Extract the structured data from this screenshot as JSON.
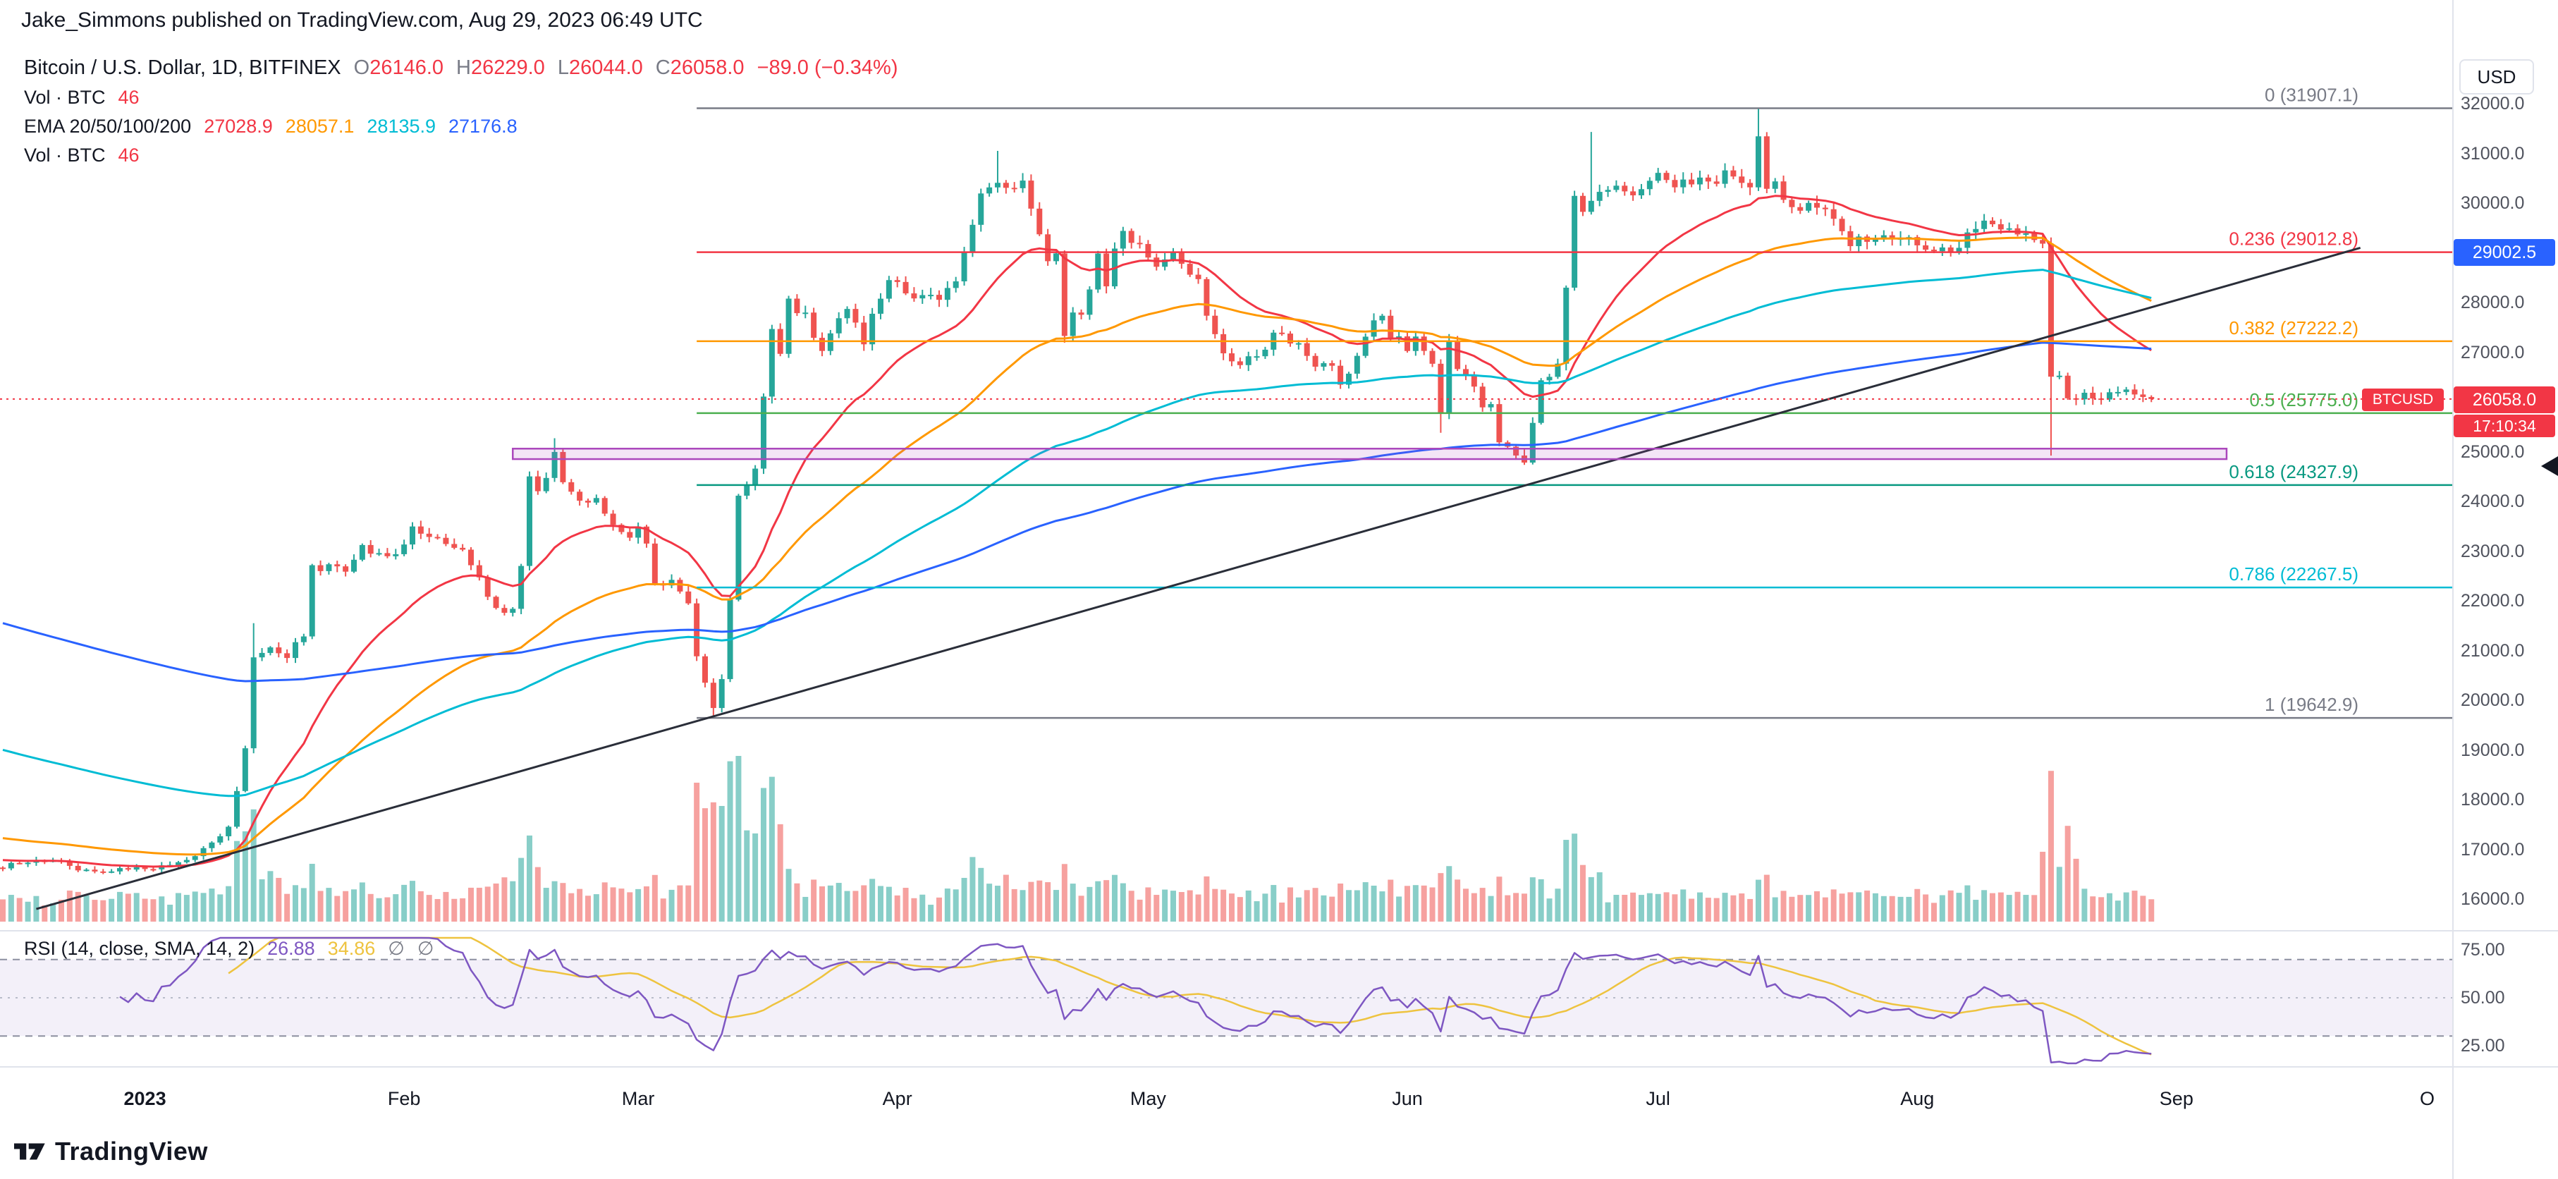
{
  "header": {
    "publish_info": "Jake_Simmons published on TradingView.com, Aug 29, 2023 06:49 UTC"
  },
  "legend": {
    "symbol_title": "Bitcoin / U.S. Dollar, 1D, BITFINEX",
    "ohlc": [
      {
        "k": "O",
        "v": "26146.0"
      },
      {
        "k": "H",
        "v": "26229.0"
      },
      {
        "k": "L",
        "v": "26044.0"
      },
      {
        "k": "C",
        "v": "26058.0"
      }
    ],
    "change": "−89.0 (−0.34%)",
    "vol_label": "Vol · BTC",
    "vol_value": "46",
    "ema_label": "EMA 20/50/100/200",
    "ema_values": [
      {
        "v": "27028.9"
      },
      {
        "v": "28057.1"
      },
      {
        "v": "28135.9"
      },
      {
        "v": "27176.8"
      }
    ]
  },
  "price_scale": {
    "currency_label": "USD",
    "fib_tag": {
      "text": "29002.5",
      "color": "#2962ff"
    },
    "last_price_tag": {
      "symbol": "BTCUSD",
      "price": "26058.0",
      "countdown": "17:10:34",
      "color": "#f23645"
    }
  },
  "rsi_legend": {
    "label": "RSI (14, close, SMA, 14, 2)",
    "value": "26.88",
    "sma_value": "34.86",
    "empty1": "∅",
    "empty2": "∅"
  },
  "footer": {
    "brand": "TradingView"
  },
  "chart_data": {
    "type": "candlestick",
    "symbol": "BTCUSD",
    "exchange": "BITFINEX",
    "timeframe": "1D",
    "title": "Bitcoin / U.S. Dollar, 1D, BITFINEX",
    "y_axis": {
      "min": 16000,
      "max": 32000,
      "tick_step": 1000,
      "ticks": [
        "32000.0",
        "31000.0",
        "30000.0",
        "29000.0",
        "28000.0",
        "27000.0",
        "26000.0",
        "25000.0",
        "24000.0",
        "23000.0",
        "22000.0",
        "21000.0",
        "20000.0",
        "19000.0",
        "18000.0",
        "17000.0",
        "16000.0"
      ]
    },
    "x_axis": {
      "day0": "2022-12-15",
      "ticks": [
        {
          "label": "2023",
          "day": 17,
          "bold": true
        },
        {
          "label": "Feb",
          "day": 48
        },
        {
          "label": "Mar",
          "day": 76
        },
        {
          "label": "Apr",
          "day": 107
        },
        {
          "label": "May",
          "day": 137
        },
        {
          "label": "Jun",
          "day": 168
        },
        {
          "label": "Jul",
          "day": 198
        },
        {
          "label": "Aug",
          "day": 229
        },
        {
          "label": "Sep",
          "day": 260
        },
        {
          "label": "O",
          "day": 290
        }
      ]
    },
    "colors": {
      "up": "#26a69a",
      "down": "#ef5350",
      "vol_up": "rgba(38,166,154,0.55)",
      "vol_down": "rgba(239,83,80,0.55)",
      "last_price_line": "#f23645"
    },
    "close_anchors": [
      [
        0,
        16650
      ],
      [
        3,
        16750
      ],
      [
        6,
        16800
      ],
      [
        9,
        16620
      ],
      [
        12,
        16560
      ],
      [
        15,
        16620
      ],
      [
        17,
        16550
      ],
      [
        20,
        16680
      ],
      [
        23,
        16850
      ],
      [
        25,
        17150
      ],
      [
        27,
        17400
      ],
      [
        28,
        18200
      ],
      [
        29,
        19100
      ],
      [
        30,
        20900
      ],
      [
        32,
        21050
      ],
      [
        34,
        20850
      ],
      [
        36,
        21350
      ],
      [
        37,
        22650
      ],
      [
        39,
        22700
      ],
      [
        41,
        22600
      ],
      [
        43,
        23050
      ],
      [
        45,
        23000
      ],
      [
        46,
        22850
      ],
      [
        48,
        23100
      ],
      [
        49,
        23450
      ],
      [
        51,
        23300
      ],
      [
        53,
        23200
      ],
      [
        55,
        22950
      ],
      [
        57,
        22450
      ],
      [
        59,
        21850
      ],
      [
        60,
        21780
      ],
      [
        61,
        21850
      ],
      [
        62,
        22750
      ],
      [
        63,
        24550
      ],
      [
        64,
        24250
      ],
      [
        65,
        24400
      ],
      [
        66,
        25000
      ],
      [
        67,
        24450
      ],
      [
        68,
        24250
      ],
      [
        70,
        23900
      ],
      [
        71,
        24150
      ],
      [
        73,
        23500
      ],
      [
        75,
        23200
      ],
      [
        76,
        23450
      ],
      [
        77,
        23200
      ],
      [
        78,
        22350
      ],
      [
        80,
        22400
      ],
      [
        82,
        21950
      ],
      [
        83,
        20850
      ],
      [
        84,
        20350
      ],
      [
        85,
        19900
      ],
      [
        86,
        20450
      ],
      [
        87,
        22050
      ],
      [
        88,
        24150
      ],
      [
        89,
        24350
      ],
      [
        90,
        24700
      ],
      [
        91,
        26050
      ],
      [
        92,
        27450
      ],
      [
        93,
        26950
      ],
      [
        94,
        28050
      ],
      [
        95,
        27700
      ],
      [
        96,
        27850
      ],
      [
        97,
        27350
      ],
      [
        98,
        27100
      ],
      [
        99,
        27450
      ],
      [
        100,
        27700
      ],
      [
        101,
        27850
      ],
      [
        102,
        27550
      ],
      [
        103,
        27250
      ],
      [
        104,
        27700
      ],
      [
        105,
        28050
      ],
      [
        106,
        28450
      ],
      [
        108,
        28200
      ],
      [
        110,
        28150
      ],
      [
        112,
        28050
      ],
      [
        114,
        28350
      ],
      [
        115,
        29100
      ],
      [
        116,
        29650
      ],
      [
        117,
        30150
      ],
      [
        118,
        30300
      ],
      [
        119,
        30450
      ],
      [
        120,
        30350
      ],
      [
        121,
        30400
      ],
      [
        122,
        30350
      ],
      [
        123,
        29850
      ],
      [
        124,
        29400
      ],
      [
        125,
        28850
      ],
      [
        126,
        29000
      ],
      [
        127,
        27250
      ],
      [
        128,
        27800
      ],
      [
        129,
        27850
      ],
      [
        130,
        28350
      ],
      [
        131,
        28950
      ],
      [
        132,
        28350
      ],
      [
        133,
        29000
      ],
      [
        134,
        29500
      ],
      [
        135,
        29300
      ],
      [
        136,
        29250
      ],
      [
        138,
        28650
      ],
      [
        140,
        29050
      ],
      [
        141,
        28850
      ],
      [
        142,
        28600
      ],
      [
        143,
        28450
      ],
      [
        144,
        27650
      ],
      [
        145,
        27400
      ],
      [
        146,
        27000
      ],
      [
        147,
        26900
      ],
      [
        148,
        26800
      ],
      [
        149,
        26950
      ],
      [
        150,
        26850
      ],
      [
        151,
        27100
      ],
      [
        152,
        27400
      ],
      [
        153,
        27350
      ],
      [
        154,
        27150
      ],
      [
        155,
        27100
      ],
      [
        156,
        26900
      ],
      [
        157,
        26750
      ],
      [
        158,
        26850
      ],
      [
        159,
        26700
      ],
      [
        160,
        26300
      ],
      [
        161,
        26500
      ],
      [
        162,
        26850
      ],
      [
        163,
        27250
      ],
      [
        164,
        27600
      ],
      [
        165,
        27700
      ],
      [
        166,
        27300
      ],
      [
        167,
        27250
      ],
      [
        168,
        27100
      ],
      [
        169,
        27250
      ],
      [
        170,
        27100
      ],
      [
        171,
        26800
      ],
      [
        172,
        25750
      ],
      [
        173,
        27240
      ],
      [
        174,
        26750
      ],
      [
        175,
        26450
      ],
      [
        176,
        26350
      ],
      [
        177,
        25850
      ],
      [
        178,
        25900
      ],
      [
        179,
        25150
      ],
      [
        180,
        25050
      ],
      [
        181,
        24950
      ],
      [
        182,
        24850
      ],
      [
        183,
        25650
      ],
      [
        184,
        26350
      ],
      [
        185,
        26550
      ],
      [
        186,
        26850
      ],
      [
        187,
        28350
      ],
      [
        188,
        30050
      ],
      [
        189,
        29900
      ],
      [
        190,
        29950
      ],
      [
        191,
        30150
      ],
      [
        192,
        30250
      ],
      [
        193,
        30450
      ],
      [
        194,
        30300
      ],
      [
        195,
        30250
      ],
      [
        196,
        30350
      ],
      [
        197,
        30450
      ],
      [
        198,
        30600
      ],
      [
        199,
        30550
      ],
      [
        200,
        30350
      ],
      [
        201,
        30400
      ],
      [
        202,
        30450
      ],
      [
        203,
        30500
      ],
      [
        204,
        30350
      ],
      [
        205,
        30400
      ],
      [
        206,
        30650
      ],
      [
        207,
        30600
      ],
      [
        208,
        30350
      ],
      [
        209,
        30400
      ],
      [
        210,
        31250
      ],
      [
        211,
        30300
      ],
      [
        212,
        30350
      ],
      [
        213,
        30150
      ],
      [
        214,
        29950
      ],
      [
        215,
        29850
      ],
      [
        216,
        30050
      ],
      [
        217,
        29950
      ],
      [
        218,
        29850
      ],
      [
        219,
        29750
      ],
      [
        220,
        29450
      ],
      [
        221,
        29150
      ],
      [
        222,
        29250
      ],
      [
        223,
        29250
      ],
      [
        224,
        29300
      ],
      [
        225,
        29350
      ],
      [
        226,
        29300
      ],
      [
        227,
        29350
      ],
      [
        228,
        29300
      ],
      [
        229,
        29250
      ],
      [
        230,
        29150
      ],
      [
        231,
        28950
      ],
      [
        232,
        29050
      ],
      [
        233,
        29100
      ],
      [
        234,
        29150
      ],
      [
        235,
        29400
      ],
      [
        236,
        29550
      ],
      [
        237,
        29750
      ],
      [
        238,
        29600
      ],
      [
        239,
        29550
      ],
      [
        240,
        29500
      ],
      [
        241,
        29450
      ],
      [
        242,
        29400
      ],
      [
        243,
        29350
      ],
      [
        244,
        29150
      ],
      [
        245,
        26600
      ],
      [
        246,
        26450
      ],
      [
        247,
        26050
      ],
      [
        248,
        26100
      ],
      [
        249,
        26200
      ],
      [
        250,
        26150
      ],
      [
        251,
        26100
      ],
      [
        252,
        26150
      ],
      [
        253,
        26200
      ],
      [
        254,
        26250
      ],
      [
        255,
        26150
      ],
      [
        256,
        26100
      ],
      [
        257,
        26058
      ]
    ],
    "wick_overrides": [
      [
        30,
        "high",
        21550
      ],
      [
        66,
        "high",
        25270
      ],
      [
        85,
        "low",
        19642.9
      ],
      [
        119,
        "high",
        31050
      ],
      [
        172,
        "low",
        25380
      ],
      [
        190,
        "high",
        31431
      ],
      [
        210,
        "high",
        31907.1
      ],
      [
        245,
        "low",
        24920
      ]
    ],
    "ema": {
      "periods": [
        20,
        50,
        100,
        200
      ],
      "colors": [
        "#f23645",
        "#ff9800",
        "#00bcd4",
        "#2962ff"
      ],
      "left_edge_values": [
        16800,
        17250,
        19050,
        21600
      ],
      "current": [
        27028.9,
        28057.1,
        28135.9,
        27176.8
      ]
    },
    "fib_levels": [
      {
        "label": "0 (31907.1)",
        "price": 31907.1,
        "color": "#787b86"
      },
      {
        "label": "0.236 (29012.8)",
        "price": 29012.8,
        "color": "#f23645"
      },
      {
        "label": "0.382 (27222.2)",
        "price": 27222.2,
        "color": "#ff9800"
      },
      {
        "label": "0.5 (25775.0)",
        "price": 25775.0,
        "color": "#4caf50"
      },
      {
        "label": "0.618 (24327.9)",
        "price": 24327.9,
        "color": "#089981"
      },
      {
        "label": "0.786 (22267.5)",
        "price": 22267.5,
        "color": "#00bcd4"
      },
      {
        "label": "1 (19642.9)",
        "price": 19642.9,
        "color": "#787b86"
      }
    ],
    "fib_start_day": 83,
    "trend_line": {
      "from_day": 4,
      "from_price": 15800,
      "to_day": 282,
      "to_price": 29100,
      "color": "#2a2e39"
    },
    "range_zone": {
      "from_day": 61,
      "to_day": 266,
      "price_top": 25060,
      "price_bottom": 24850,
      "color": "#ab47bc"
    },
    "last_price": 26058.0,
    "volume": {
      "legend_value": 46,
      "spikes": [
        [
          28,
          33,
          1.7
        ],
        [
          60,
          64,
          1.4
        ],
        [
          83,
          93,
          2.6
        ],
        [
          116,
          121,
          1.5
        ],
        [
          187,
          191,
          1.5
        ],
        [
          244,
          248,
          2.4
        ]
      ]
    },
    "rsi": {
      "period": 14,
      "smoothing": "SMA 14",
      "current": 26.88,
      "sma_current": 34.86,
      "bands": [
        70,
        30
      ],
      "mid": 50,
      "scale_ticks": [
        {
          "label": "75.00",
          "v": 75
        },
        {
          "label": "50.00",
          "v": 50
        },
        {
          "label": "25.00",
          "v": 25
        }
      ],
      "line_color": "#7e57c2",
      "sma_color": "#eec33f"
    }
  }
}
